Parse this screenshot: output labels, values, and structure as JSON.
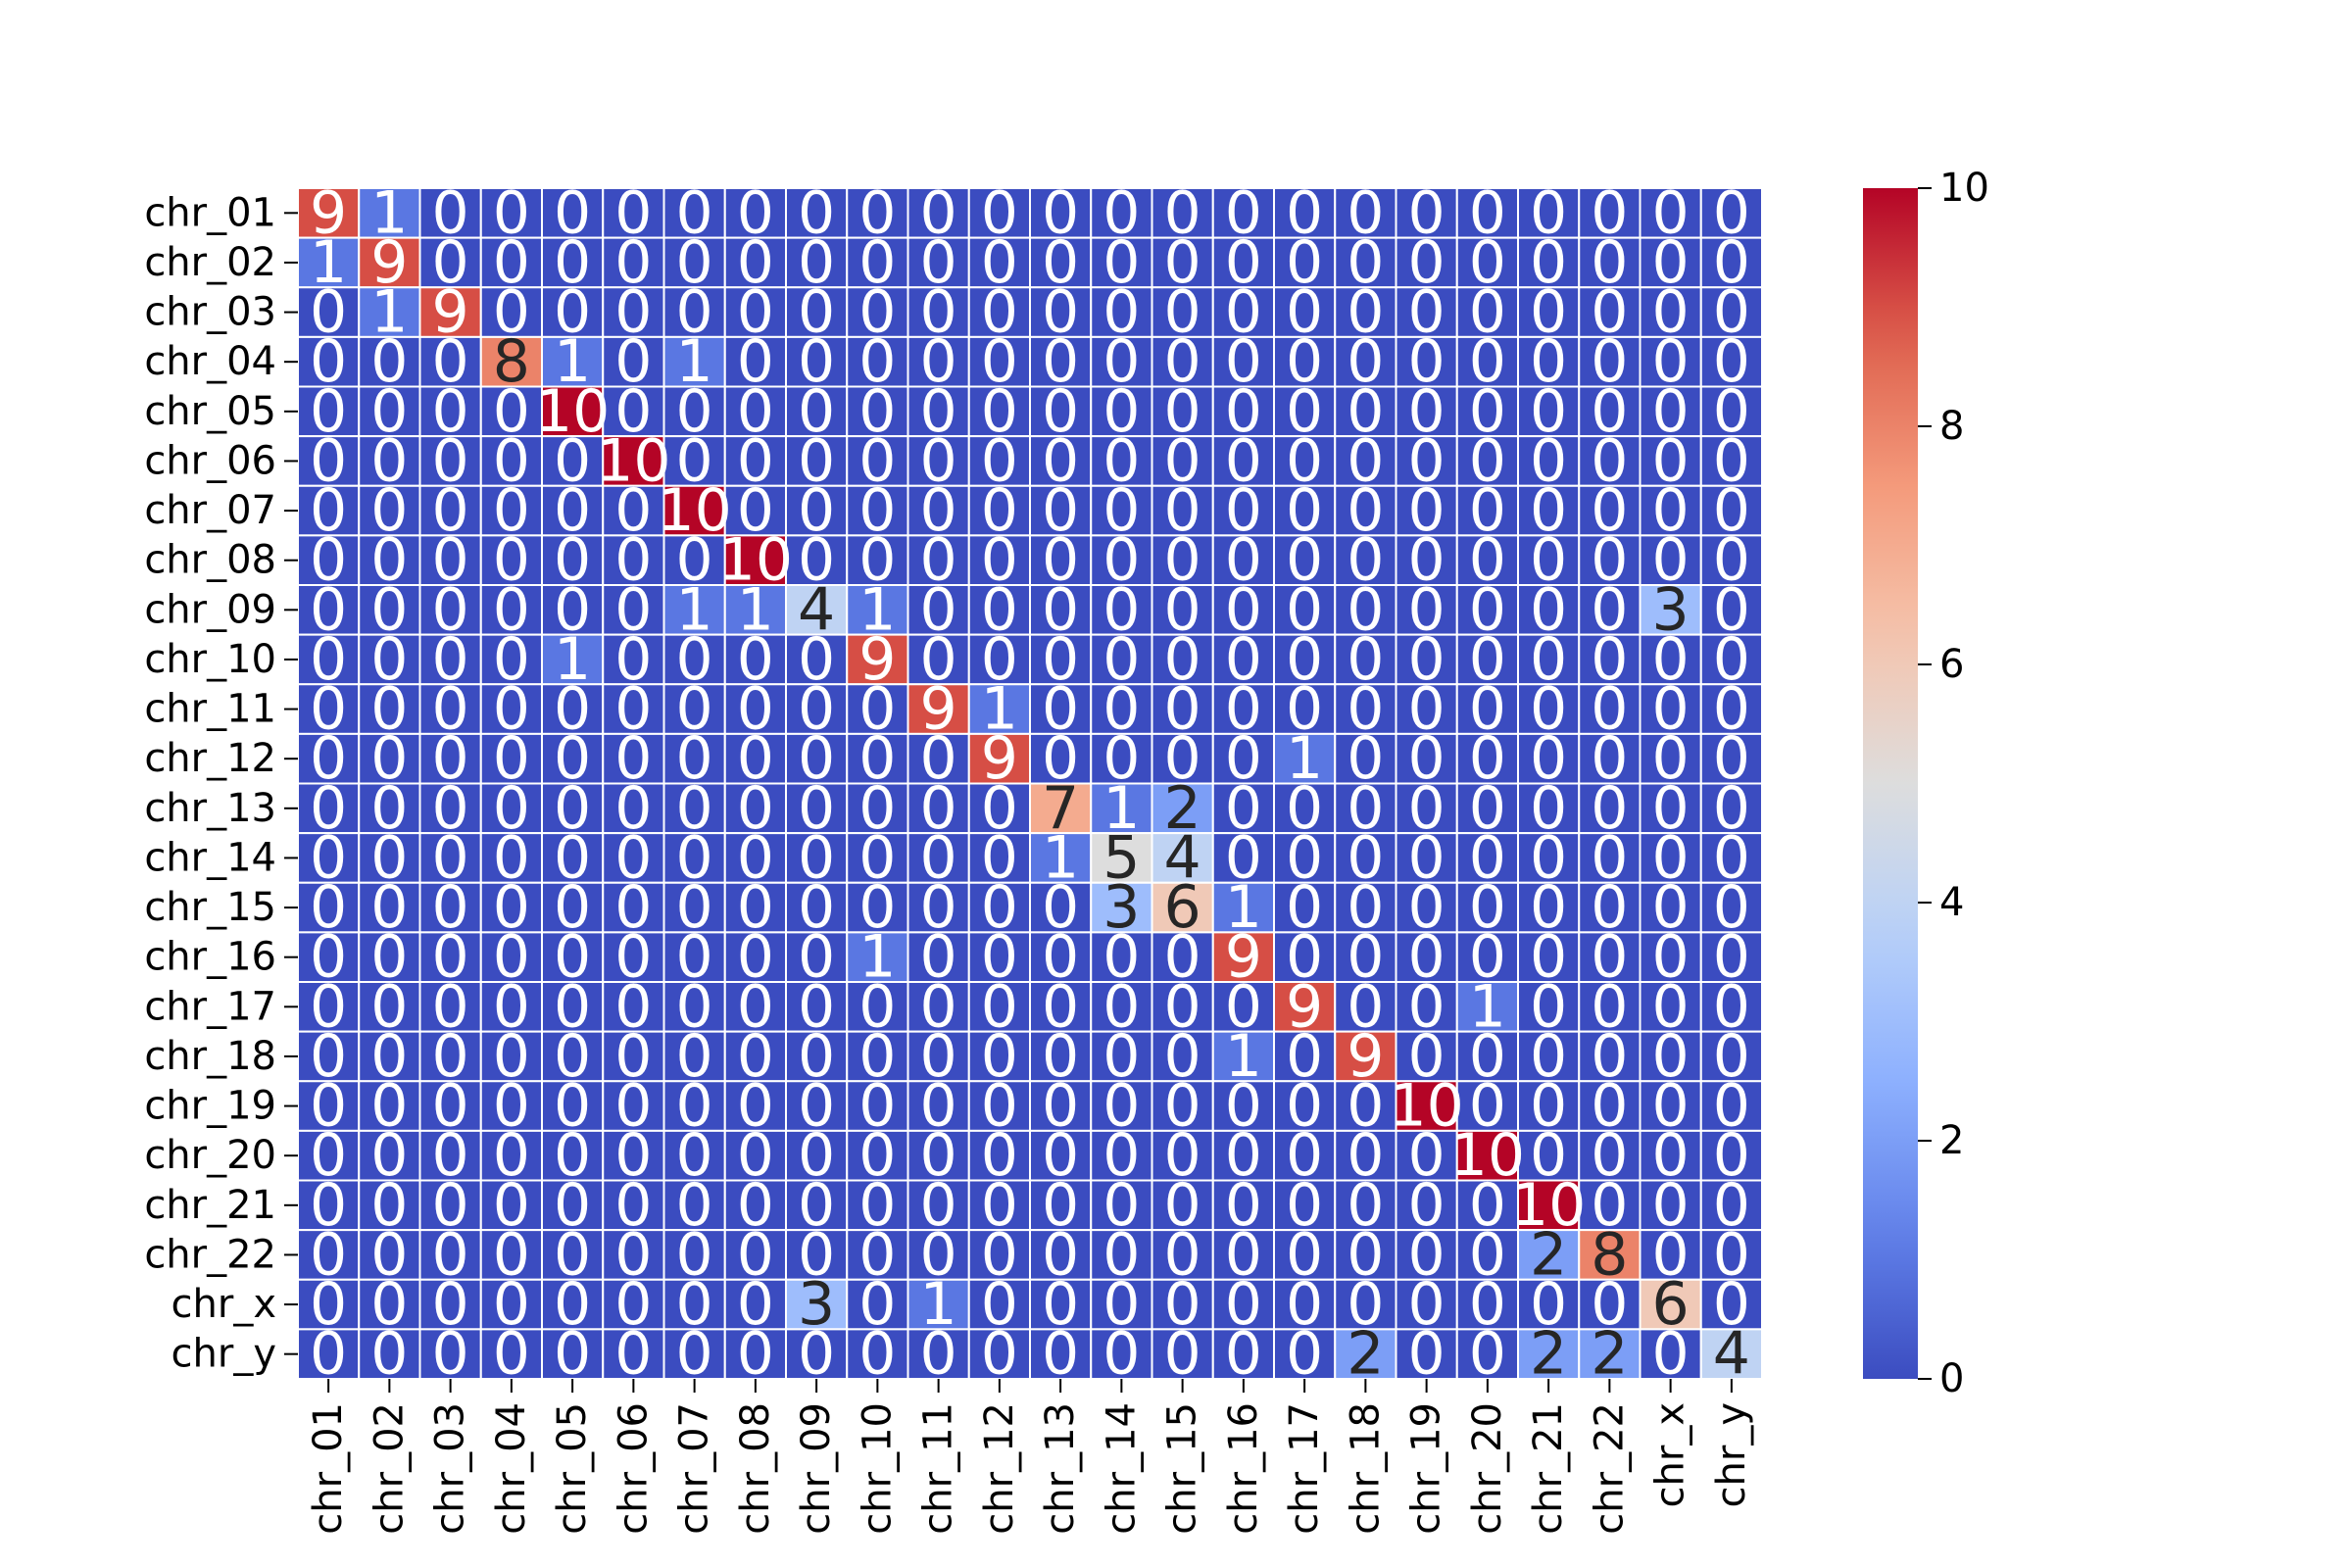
{
  "chart_data": {
    "type": "heatmap",
    "title": "",
    "xlabel": "",
    "ylabel": "",
    "x_labels": [
      "chr_01",
      "chr_02",
      "chr_03",
      "chr_04",
      "chr_05",
      "chr_06",
      "chr_07",
      "chr_08",
      "chr_09",
      "chr_10",
      "chr_11",
      "chr_12",
      "chr_13",
      "chr_14",
      "chr_15",
      "chr_16",
      "chr_17",
      "chr_18",
      "chr_19",
      "chr_20",
      "chr_21",
      "chr_22",
      "chr_x",
      "chr_y"
    ],
    "y_labels": [
      "chr_01",
      "chr_02",
      "chr_03",
      "chr_04",
      "chr_05",
      "chr_06",
      "chr_07",
      "chr_08",
      "chr_09",
      "chr_10",
      "chr_11",
      "chr_12",
      "chr_13",
      "chr_14",
      "chr_15",
      "chr_16",
      "chr_17",
      "chr_18",
      "chr_19",
      "chr_20",
      "chr_21",
      "chr_22",
      "chr_x",
      "chr_y"
    ],
    "values": [
      [
        9,
        1,
        0,
        0,
        0,
        0,
        0,
        0,
        0,
        0,
        0,
        0,
        0,
        0,
        0,
        0,
        0,
        0,
        0,
        0,
        0,
        0,
        0,
        0
      ],
      [
        1,
        9,
        0,
        0,
        0,
        0,
        0,
        0,
        0,
        0,
        0,
        0,
        0,
        0,
        0,
        0,
        0,
        0,
        0,
        0,
        0,
        0,
        0,
        0
      ],
      [
        0,
        1,
        9,
        0,
        0,
        0,
        0,
        0,
        0,
        0,
        0,
        0,
        0,
        0,
        0,
        0,
        0,
        0,
        0,
        0,
        0,
        0,
        0,
        0
      ],
      [
        0,
        0,
        0,
        8,
        1,
        0,
        1,
        0,
        0,
        0,
        0,
        0,
        0,
        0,
        0,
        0,
        0,
        0,
        0,
        0,
        0,
        0,
        0,
        0
      ],
      [
        0,
        0,
        0,
        0,
        10,
        0,
        0,
        0,
        0,
        0,
        0,
        0,
        0,
        0,
        0,
        0,
        0,
        0,
        0,
        0,
        0,
        0,
        0,
        0
      ],
      [
        0,
        0,
        0,
        0,
        0,
        10,
        0,
        0,
        0,
        0,
        0,
        0,
        0,
        0,
        0,
        0,
        0,
        0,
        0,
        0,
        0,
        0,
        0,
        0
      ],
      [
        0,
        0,
        0,
        0,
        0,
        0,
        10,
        0,
        0,
        0,
        0,
        0,
        0,
        0,
        0,
        0,
        0,
        0,
        0,
        0,
        0,
        0,
        0,
        0
      ],
      [
        0,
        0,
        0,
        0,
        0,
        0,
        0,
        10,
        0,
        0,
        0,
        0,
        0,
        0,
        0,
        0,
        0,
        0,
        0,
        0,
        0,
        0,
        0,
        0
      ],
      [
        0,
        0,
        0,
        0,
        0,
        0,
        1,
        1,
        4,
        1,
        0,
        0,
        0,
        0,
        0,
        0,
        0,
        0,
        0,
        0,
        0,
        0,
        3,
        0
      ],
      [
        0,
        0,
        0,
        0,
        1,
        0,
        0,
        0,
        0,
        9,
        0,
        0,
        0,
        0,
        0,
        0,
        0,
        0,
        0,
        0,
        0,
        0,
        0,
        0
      ],
      [
        0,
        0,
        0,
        0,
        0,
        0,
        0,
        0,
        0,
        0,
        9,
        1,
        0,
        0,
        0,
        0,
        0,
        0,
        0,
        0,
        0,
        0,
        0,
        0
      ],
      [
        0,
        0,
        0,
        0,
        0,
        0,
        0,
        0,
        0,
        0,
        0,
        9,
        0,
        0,
        0,
        0,
        1,
        0,
        0,
        0,
        0,
        0,
        0,
        0
      ],
      [
        0,
        0,
        0,
        0,
        0,
        0,
        0,
        0,
        0,
        0,
        0,
        0,
        7,
        1,
        2,
        0,
        0,
        0,
        0,
        0,
        0,
        0,
        0,
        0
      ],
      [
        0,
        0,
        0,
        0,
        0,
        0,
        0,
        0,
        0,
        0,
        0,
        0,
        1,
        5,
        4,
        0,
        0,
        0,
        0,
        0,
        0,
        0,
        0,
        0
      ],
      [
        0,
        0,
        0,
        0,
        0,
        0,
        0,
        0,
        0,
        0,
        0,
        0,
        0,
        3,
        6,
        1,
        0,
        0,
        0,
        0,
        0,
        0,
        0,
        0
      ],
      [
        0,
        0,
        0,
        0,
        0,
        0,
        0,
        0,
        0,
        1,
        0,
        0,
        0,
        0,
        0,
        9,
        0,
        0,
        0,
        0,
        0,
        0,
        0,
        0
      ],
      [
        0,
        0,
        0,
        0,
        0,
        0,
        0,
        0,
        0,
        0,
        0,
        0,
        0,
        0,
        0,
        0,
        9,
        0,
        0,
        1,
        0,
        0,
        0,
        0
      ],
      [
        0,
        0,
        0,
        0,
        0,
        0,
        0,
        0,
        0,
        0,
        0,
        0,
        0,
        0,
        0,
        1,
        0,
        9,
        0,
        0,
        0,
        0,
        0,
        0
      ],
      [
        0,
        0,
        0,
        0,
        0,
        0,
        0,
        0,
        0,
        0,
        0,
        0,
        0,
        0,
        0,
        0,
        0,
        0,
        10,
        0,
        0,
        0,
        0,
        0
      ],
      [
        0,
        0,
        0,
        0,
        0,
        0,
        0,
        0,
        0,
        0,
        0,
        0,
        0,
        0,
        0,
        0,
        0,
        0,
        0,
        10,
        0,
        0,
        0,
        0
      ],
      [
        0,
        0,
        0,
        0,
        0,
        0,
        0,
        0,
        0,
        0,
        0,
        0,
        0,
        0,
        0,
        0,
        0,
        0,
        0,
        0,
        10,
        0,
        0,
        0
      ],
      [
        0,
        0,
        0,
        0,
        0,
        0,
        0,
        0,
        0,
        0,
        0,
        0,
        0,
        0,
        0,
        0,
        0,
        0,
        0,
        0,
        2,
        8,
        0,
        0
      ],
      [
        0,
        0,
        0,
        0,
        0,
        0,
        0,
        0,
        3,
        0,
        1,
        0,
        0,
        0,
        0,
        0,
        0,
        0,
        0,
        0,
        0,
        0,
        6,
        0
      ],
      [
        0,
        0,
        0,
        0,
        0,
        0,
        0,
        0,
        0,
        0,
        0,
        0,
        0,
        0,
        0,
        0,
        0,
        2,
        0,
        0,
        2,
        2,
        0,
        4
      ]
    ],
    "colormap": "coolwarm",
    "vmin": 0,
    "vmax": 10,
    "colorbar_ticks": [
      0,
      2,
      4,
      6,
      8,
      10
    ],
    "annotations": true,
    "legend": "colorbar-right"
  }
}
